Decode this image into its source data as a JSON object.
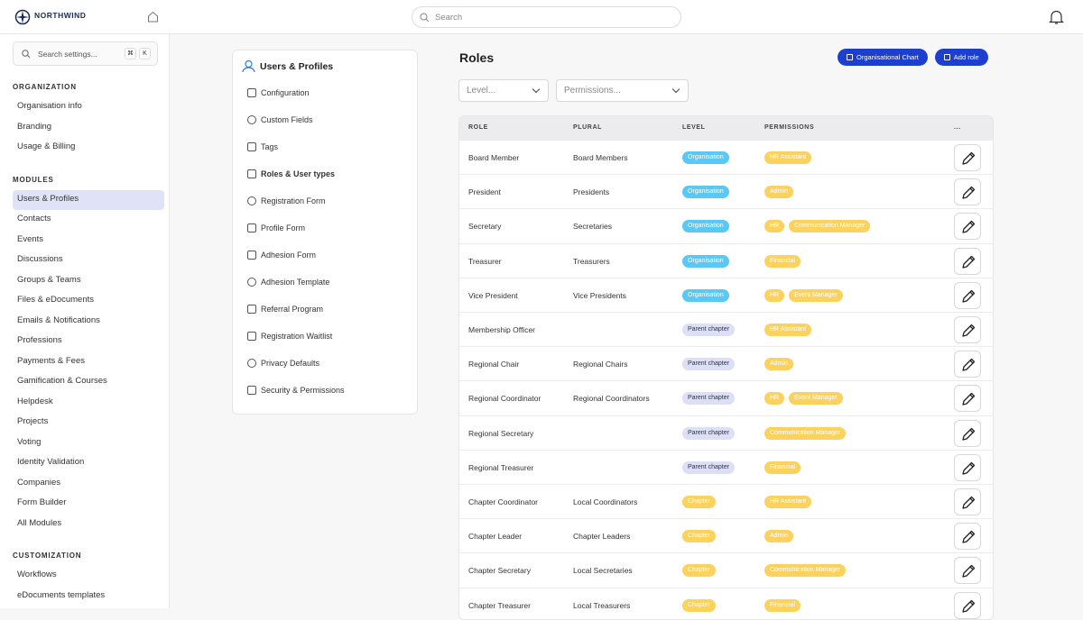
{
  "brand": {
    "name": "NORTHWIND"
  },
  "topbar": {
    "search_placeholder": "Search"
  },
  "sidebar": {
    "search_placeholder": "Search settings...",
    "shortcut": [
      "⌘",
      "K"
    ],
    "active": [
      1,
      0
    ],
    "sections": [
      {
        "title": "ORGANIZATION",
        "items": [
          "Organisation info",
          "Branding",
          "Usage & Billing"
        ]
      },
      {
        "title": "MODULES",
        "items": [
          "Users & Profiles",
          "Contacts",
          "Events",
          "Discussions",
          "Groups & Teams",
          "Files & eDocuments",
          "Emails & Notifications",
          "Professions",
          "Payments & Fees",
          "Gamification & Courses",
          "Helpdesk",
          "Projects",
          "Voting",
          "Identity Validation",
          "Companies",
          "Form Builder",
          "All Modules"
        ]
      },
      {
        "title": "CUSTOMIZATION",
        "items": [
          "Workflows",
          "eDocuments templates"
        ]
      }
    ]
  },
  "settings_menu": {
    "title": "Users & Profiles",
    "active": 3,
    "items": [
      "Configuration",
      "Custom Fields",
      "Tags",
      "Roles & User types",
      "Registration Form",
      "Profile Form",
      "Adhesion Form",
      "Adhesion Template",
      "Referral Program",
      "Registration Waitlist",
      "Privacy Defaults",
      "Security & Permissions"
    ]
  },
  "main": {
    "title": "Roles",
    "buttons": [
      "Organisational Chart",
      "Add role"
    ],
    "filters": [
      "Level...",
      "Permissions..."
    ],
    "table": {
      "headers": [
        "ROLE",
        "PLURAL",
        "LEVEL",
        "PERMISSIONS",
        "..."
      ],
      "permission_color": "#fcd25e",
      "rows": [
        {
          "role": "Board Member",
          "plural": "Board Members",
          "level": {
            "label": "Organisation",
            "color": "#5ac8f5"
          },
          "permissions": [
            "HR Assistant"
          ]
        },
        {
          "role": "President",
          "plural": "Presidents",
          "level": {
            "label": "Organisation",
            "color": "#5ac8f5"
          },
          "permissions": [
            "Admin"
          ]
        },
        {
          "role": "Secretary",
          "plural": "Secretaries",
          "level": {
            "label": "Organisation",
            "color": "#5ac8f5"
          },
          "permissions": [
            "HR",
            "Communication Manager"
          ]
        },
        {
          "role": "Treasurer",
          "plural": "Treasurers",
          "level": {
            "label": "Organisation",
            "color": "#5ac8f5"
          },
          "permissions": [
            "Financial"
          ]
        },
        {
          "role": "Vice President",
          "plural": "Vice Presidents",
          "level": {
            "label": "Organisation",
            "color": "#5ac8f5"
          },
          "permissions": [
            "HR",
            "Event Manager"
          ]
        },
        {
          "role": "Membership Officer",
          "plural": null,
          "level": {
            "label": "Parent chapter",
            "color": "#dcdff6"
          },
          "permissions": [
            "HR Assistant"
          ]
        },
        {
          "role": "Regional Chair",
          "plural": "Regional Chairs",
          "level": {
            "label": "Parent chapter",
            "color": "#dcdff6"
          },
          "permissions": [
            "Admin"
          ]
        },
        {
          "role": "Regional Coordinator",
          "plural": "Regional Coordinators",
          "level": {
            "label": "Parent chapter",
            "color": "#dcdff6"
          },
          "permissions": [
            "HR",
            "Event Manager"
          ]
        },
        {
          "role": "Regional Secretary",
          "plural": null,
          "level": {
            "label": "Parent chapter",
            "color": "#dcdff6"
          },
          "permissions": [
            "Communication Manager"
          ]
        },
        {
          "role": "Regional Treasurer",
          "plural": null,
          "level": {
            "label": "Parent chapter",
            "color": "#dcdff6"
          },
          "permissions": [
            "Financial"
          ]
        },
        {
          "role": "Chapter Coordinator",
          "plural": "Local Coordinators",
          "level": {
            "label": "Chapter",
            "color": "#fcd25e"
          },
          "permissions": [
            "HR Assistant"
          ]
        },
        {
          "role": "Chapter Leader",
          "plural": "Chapter Leaders",
          "level": {
            "label": "Chapter",
            "color": "#fcd25e"
          },
          "permissions": [
            "Admin"
          ]
        },
        {
          "role": "Chapter Secretary",
          "plural": "Local Secretaries",
          "level": {
            "label": "Chapter",
            "color": "#fcd25e"
          },
          "permissions": [
            "Communication Manager"
          ]
        },
        {
          "role": "Chapter Treasurer",
          "plural": "Local Treasurers",
          "level": {
            "label": "Chapter",
            "color": "#fcd25e"
          },
          "permissions": [
            "Financial"
          ]
        }
      ]
    }
  }
}
